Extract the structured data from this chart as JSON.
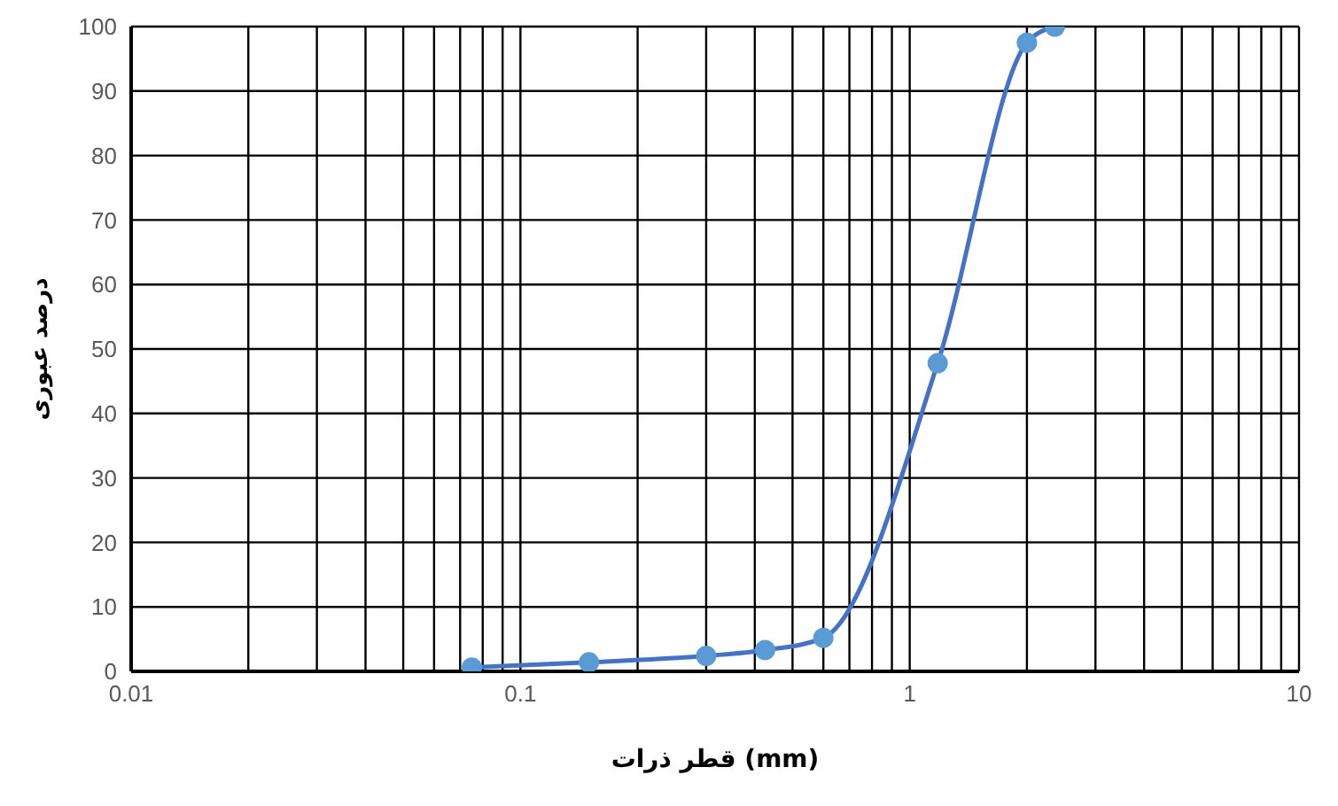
{
  "chart_data": {
    "type": "line",
    "xlabel": "قطر ذرات (mm)",
    "ylabel": "درصد عبوری",
    "log": "x",
    "grid": true,
    "marker": "circle",
    "line_style": "solid",
    "x": [
      0.075,
      0.15,
      0.3,
      0.425,
      0.6,
      1.18,
      2.0,
      2.36
    ],
    "series": [
      {
        "color": "#4472c4",
        "values": [
          0.6,
          1.4,
          2.4,
          3.3,
          5.2,
          47.8,
          97.5,
          100
        ]
      }
    ],
    "xlim": [
      0.01,
      10
    ],
    "xticks": [
      0.01,
      {
        "value": 0.02,
        "label": null
      },
      {
        "value": 0.03,
        "label": null
      },
      {
        "value": 0.04,
        "label": null
      },
      {
        "value": 0.05,
        "label": null
      },
      {
        "value": 0.06,
        "label": null
      },
      {
        "value": 0.07,
        "label": null
      },
      {
        "value": 0.08,
        "label": null
      },
      {
        "value": 0.09,
        "label": null
      },
      0.1,
      {
        "value": 0.2,
        "label": null
      },
      {
        "value": 0.3,
        "label": null
      },
      {
        "value": 0.4,
        "label": null
      },
      {
        "value": 0.5,
        "label": null
      },
      {
        "value": 0.6,
        "label": null
      },
      {
        "value": 0.7,
        "label": null
      },
      {
        "value": 0.8,
        "label": null
      },
      {
        "value": 0.9,
        "label": null
      },
      1,
      {
        "value": 2,
        "label": null
      },
      {
        "value": 3,
        "label": null
      },
      {
        "value": 4,
        "label": null
      },
      {
        "value": 5,
        "label": null
      },
      {
        "value": 6,
        "label": null
      },
      {
        "value": 7,
        "label": null
      },
      {
        "value": 8,
        "label": null
      },
      {
        "value": 9,
        "label": null
      },
      10
    ],
    "ylim": [
      0,
      100
    ],
    "yticks": [
      0,
      10,
      20,
      30,
      40,
      50,
      60,
      70,
      80,
      90,
      100
    ]
  }
}
